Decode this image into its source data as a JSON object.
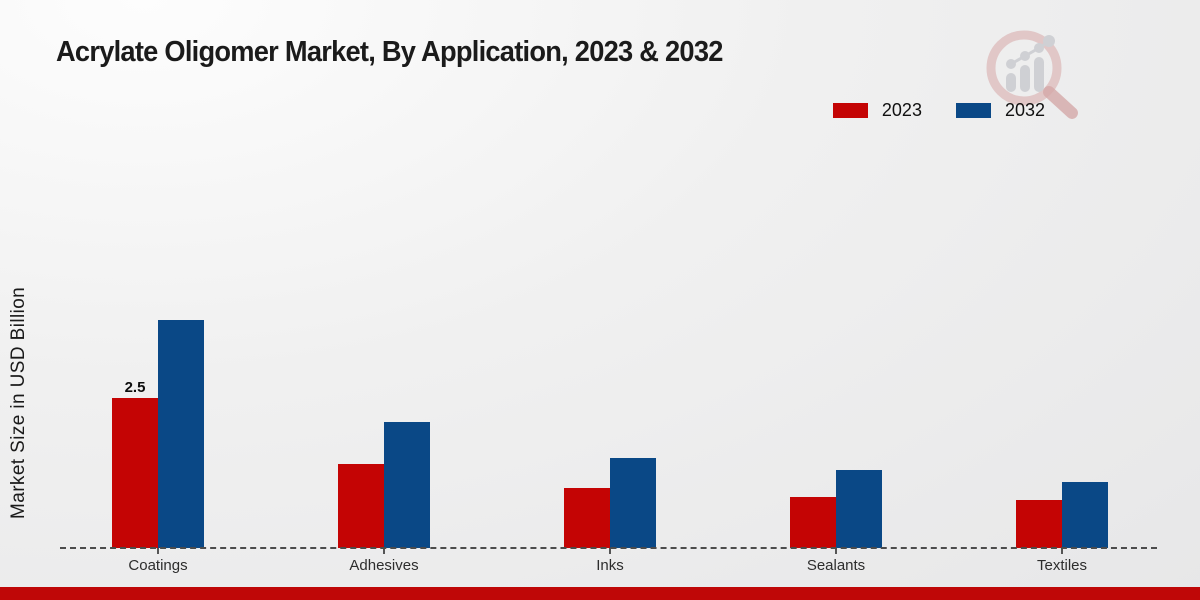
{
  "chart_data": {
    "type": "bar",
    "title": "Acrylate Oligomer Market, By Application, 2023 & 2032",
    "ylabel": "Market Size in USD Billion",
    "xlabel": "",
    "categories": [
      "Coatings",
      "Adhesives",
      "Inks",
      "Sealants",
      "Textiles"
    ],
    "series": [
      {
        "name": "2023",
        "color": "#c40404",
        "values": [
          2.5,
          1.4,
          1.0,
          0.85,
          0.8
        ]
      },
      {
        "name": "2032",
        "color": "#0a4886",
        "values": [
          3.8,
          2.1,
          1.5,
          1.3,
          1.1
        ]
      }
    ],
    "annotations": [
      {
        "category": "Coatings",
        "series": "2023",
        "text": "2.5"
      }
    ],
    "ylim": [
      0,
      4.2
    ],
    "grid": false,
    "axis_style": "dashed-baseline-only",
    "legend_position": "top-right"
  },
  "legend": {
    "items": [
      {
        "label": "2023",
        "color": "#c40404"
      },
      {
        "label": "2032",
        "color": "#0a4886"
      }
    ]
  },
  "style": {
    "bottom_strip_color": "#bf0707",
    "dash_color": "#4c4c4c",
    "background": "#ededee"
  },
  "watermark": {
    "name": "magnifier-growth-logo"
  }
}
